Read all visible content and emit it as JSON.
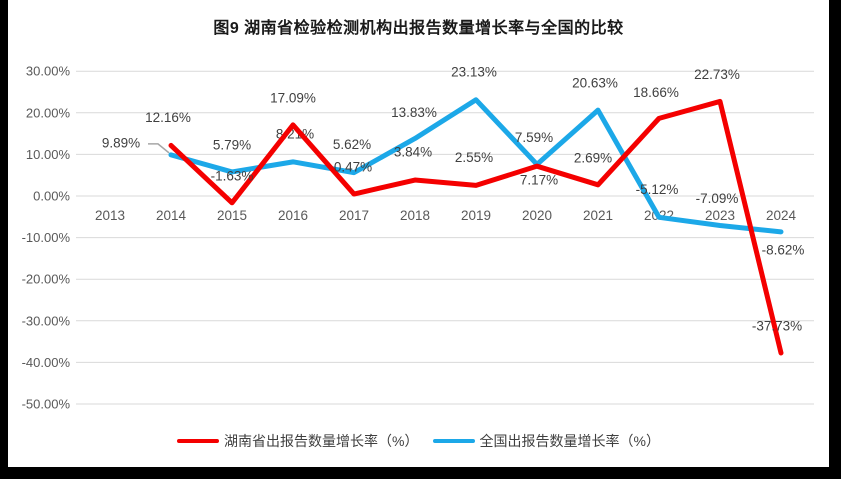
{
  "title": "图9 湖南省检验检测机构出报告数量增长率与全国的比较",
  "colors": {
    "hunan_line": "#f40000",
    "national_line": "#1ca8e8",
    "gridline": "#d9d9d9",
    "axis_text": "#595959",
    "data_label_text": "#404040",
    "window_edge": "#000000",
    "callout_line": "#a6a6a6"
  },
  "legend": {
    "items": [
      {
        "label": "湖南省出报告数量增长率（%）",
        "color": "#f40000"
      },
      {
        "label": "全国出报告数量增长率（%）",
        "color": "#1ca8e8"
      }
    ]
  },
  "chart_data": {
    "type": "line",
    "title": "图9 湖南省检验检测机构出报告数量增长率与全国的比较",
    "xlabel": "",
    "ylabel": "",
    "categories": [
      "2013",
      "2014",
      "2015",
      "2016",
      "2017",
      "2018",
      "2019",
      "2020",
      "2021",
      "2022",
      "2023",
      "2024"
    ],
    "series": [
      {
        "name": "湖南省出报告数量增长率（%）",
        "color": "#f40000",
        "values": [
          null,
          12.16,
          -1.63,
          17.09,
          0.47,
          3.84,
          2.55,
          7.17,
          2.69,
          18.66,
          22.73,
          -37.73
        ],
        "labels": [
          "",
          "12.16%",
          "-1.63%",
          "17.09%",
          "0.47%",
          "3.84%",
          "2.55%",
          "7.17%",
          "2.69%",
          "18.66%",
          "22.73%",
          "-37.73%"
        ],
        "label_offsets": [
          null,
          [
            -3,
            -28
          ],
          [
            0,
            -27
          ],
          [
            0,
            -27
          ],
          [
            -1,
            -27
          ],
          [
            -2,
            -28
          ],
          [
            -2,
            -28
          ],
          [
            2,
            14
          ],
          [
            -5,
            -27
          ],
          [
            -3,
            -26
          ],
          [
            -3,
            -27
          ],
          [
            -4,
            -27
          ]
        ]
      },
      {
        "name": "全国出报告数量增长率（%）",
        "color": "#1ca8e8",
        "values": [
          null,
          9.89,
          5.79,
          8.21,
          5.62,
          13.83,
          23.13,
          7.59,
          20.63,
          -5.12,
          -7.09,
          -8.62
        ],
        "labels": [
          "",
          "9.89%",
          "5.79%",
          "8.21%",
          "5.62%",
          "13.83%",
          "23.13%",
          "7.59%",
          "20.63%",
          "-5.12%",
          "-7.09%",
          "-8.62%"
        ],
        "label_offsets": [
          null,
          [
            -50,
            -12
          ],
          [
            0,
            -27
          ],
          [
            2,
            -28
          ],
          [
            -2,
            -28
          ],
          [
            -1,
            -26
          ],
          [
            -2,
            -28
          ],
          [
            -3,
            -27
          ],
          [
            -3,
            -27
          ],
          [
            -2,
            -28
          ],
          [
            -3,
            -27
          ],
          [
            2,
            18
          ]
        ],
        "callout_index": 1
      }
    ],
    "yticks": [
      30,
      20,
      10,
      0,
      -10,
      -20,
      -30,
      -40,
      -50
    ],
    "ytick_labels": [
      "30.00%",
      "20.00%",
      "10.00%",
      "0.00%",
      "-10.00%",
      "-20.00%",
      "-30.00%",
      "-40.00%",
      "-50.00%"
    ],
    "ylim": [
      -50,
      30
    ],
    "grid": true,
    "legend_position": "bottom"
  }
}
